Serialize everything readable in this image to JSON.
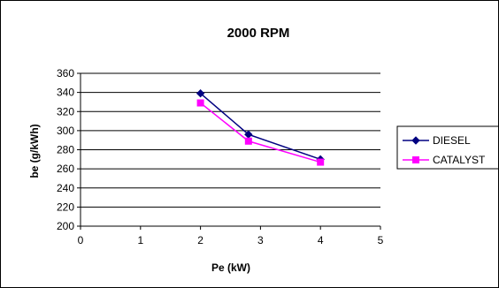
{
  "chart_data": {
    "type": "line",
    "title": "2000 RPM",
    "xlabel": "Pe (kW)",
    "ylabel": "be (g/kWh)",
    "xlim": [
      0,
      5
    ],
    "ylim": [
      200,
      360
    ],
    "xticks": [
      0,
      1,
      2,
      3,
      4,
      5
    ],
    "yticks": [
      200,
      220,
      240,
      260,
      280,
      300,
      320,
      340,
      360
    ],
    "grid": "horizontal",
    "legend_position": "right",
    "series": [
      {
        "name": "DIESEL",
        "color": "#000080",
        "marker": "diamond",
        "x": [
          2,
          2.8,
          4
        ],
        "y": [
          339,
          296,
          270
        ]
      },
      {
        "name": "CATALYST",
        "color": "#ff00ff",
        "marker": "square",
        "x": [
          2,
          2.8,
          4
        ],
        "y": [
          329,
          289,
          267
        ]
      }
    ]
  }
}
